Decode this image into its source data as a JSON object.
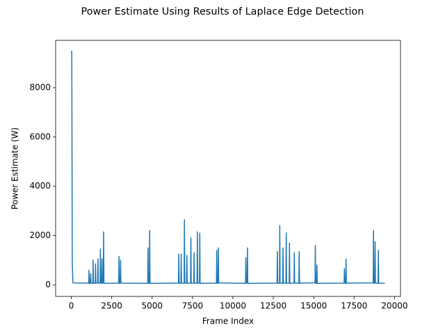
{
  "chart_data": {
    "type": "line",
    "title": "Power Estimate Using Results of Laplace Edge Detection",
    "x_label": "Frame Index",
    "y_label": "Power Estimate (W)",
    "color": "#1f77b4",
    "xlim": [
      -970,
      20370
    ],
    "ylim": [
      -470,
      9920
    ],
    "xticks": [
      0,
      2500,
      5000,
      7500,
      10000,
      12500,
      15000,
      17500,
      20000
    ],
    "yticks": [
      0,
      2000,
      4000,
      6000,
      8000
    ],
    "x": [
      0,
      30,
      60,
      100,
      1080,
      1100,
      1120,
      1180,
      1200,
      1220,
      1330,
      1350,
      1370,
      1480,
      1500,
      1520,
      1630,
      1650,
      1670,
      1780,
      1800,
      1820,
      1880,
      1900,
      1920,
      1980,
      2000,
      2020,
      2930,
      2950,
      2970,
      3030,
      3050,
      3070,
      4730,
      4750,
      4770,
      4830,
      4850,
      4870,
      6630,
      6650,
      6670,
      6780,
      6800,
      6820,
      6980,
      7000,
      7020,
      7130,
      7150,
      7170,
      7380,
      7400,
      7420,
      7580,
      7600,
      7620,
      7780,
      7800,
      7820,
      7930,
      7950,
      7970,
      8980,
      9000,
      9020,
      9080,
      9100,
      9120,
      10780,
      10800,
      10820,
      10880,
      10900,
      10920,
      12730,
      12750,
      12770,
      12880,
      12900,
      12920,
      13080,
      13100,
      13120,
      13280,
      13300,
      13320,
      13480,
      13500,
      13520,
      13780,
      13800,
      13820,
      14080,
      14100,
      14120,
      15080,
      15100,
      15120,
      15180,
      15200,
      15220,
      16880,
      16900,
      16920,
      16980,
      17000,
      17020,
      18680,
      18700,
      18720,
      18780,
      18800,
      18820,
      18980,
      19000,
      19020,
      19400
    ],
    "values": [
      9500,
      9450,
      900,
      80,
      70,
      600,
      60,
      70,
      450,
      80,
      60,
      1000,
      70,
      60,
      850,
      70,
      80,
      1050,
      60,
      70,
      1450,
      80,
      60,
      1050,
      70,
      80,
      2150,
      60,
      70,
      1150,
      60,
      80,
      1000,
      70,
      60,
      1500,
      70,
      80,
      2200,
      60,
      70,
      1250,
      60,
      70,
      1250,
      80,
      60,
      2650,
      70,
      80,
      1200,
      60,
      70,
      1900,
      60,
      80,
      1300,
      70,
      60,
      2150,
      70,
      80,
      2100,
      60,
      70,
      1400,
      60,
      70,
      1500,
      80,
      60,
      1100,
      70,
      80,
      1500,
      60,
      70,
      1350,
      60,
      70,
      2400,
      80,
      60,
      1500,
      70,
      80,
      2100,
      60,
      70,
      1700,
      60,
      70,
      1300,
      80,
      60,
      1350,
      70,
      80,
      1600,
      60,
      70,
      800,
      60,
      70,
      650,
      80,
      60,
      1050,
      70,
      80,
      2200,
      60,
      70,
      1750,
      80,
      60,
      1400,
      70,
      60
    ]
  }
}
